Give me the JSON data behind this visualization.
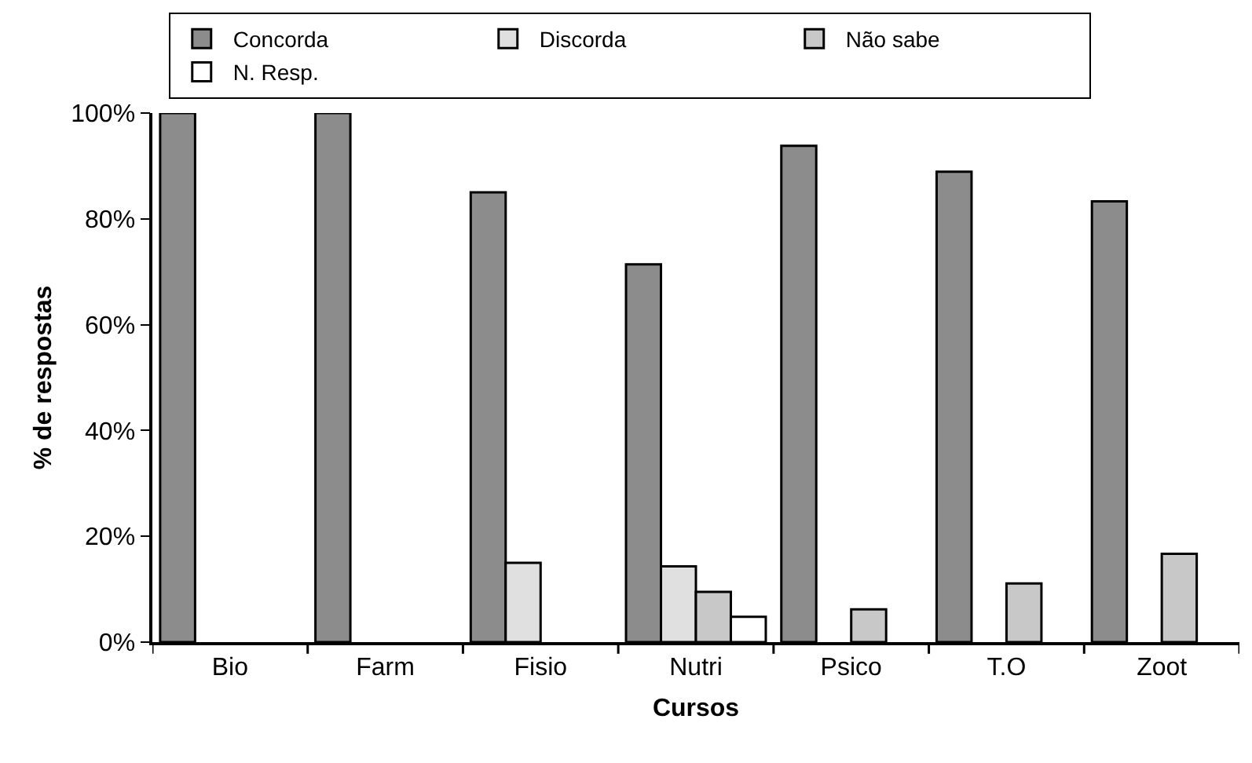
{
  "chart_data": {
    "type": "bar",
    "xlabel": "Cursos",
    "ylabel": "% de respostas",
    "categories": [
      "Bio",
      "Farm",
      "Fisio",
      "Nutri",
      "Psico",
      "T.O",
      "Zoot"
    ],
    "series": [
      {
        "name": "Concorda",
        "color": "#8c8c8c",
        "values": [
          100,
          100,
          85,
          71.4,
          93.8,
          88.9,
          83.3
        ]
      },
      {
        "name": "Discorda",
        "color": "#e0e0e0",
        "values": [
          null,
          null,
          15,
          14.3,
          null,
          null,
          null
        ]
      },
      {
        "name": "Não sabe",
        "color": "#c8c8c8",
        "values": [
          null,
          null,
          null,
          9.5,
          6.2,
          11.1,
          16.7
        ]
      },
      {
        "name": "N. Resp.",
        "color": "#ffffff",
        "values": [
          null,
          null,
          null,
          4.8,
          null,
          null,
          null
        ]
      }
    ],
    "ylim": [
      0,
      100
    ],
    "yticks": [
      {
        "value": 0,
        "label": "0%"
      },
      {
        "value": 20,
        "label": "20%"
      },
      {
        "value": 40,
        "label": "40%"
      },
      {
        "value": 60,
        "label": "60%"
      },
      {
        "value": 80,
        "label": "80%"
      },
      {
        "value": 100,
        "label": "100%"
      }
    ],
    "grid": false,
    "legend": "top"
  }
}
